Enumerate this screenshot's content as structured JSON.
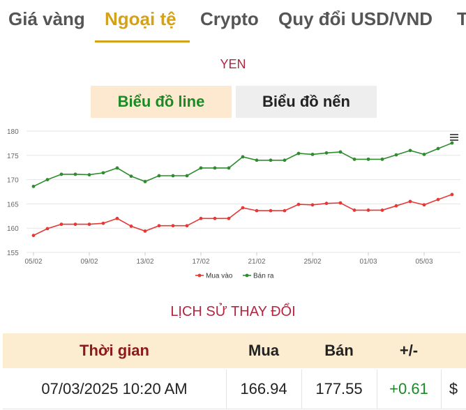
{
  "tabs": [
    "Giá vàng",
    "Ngoại tệ",
    "Crypto",
    "Quy đổi USD/VND",
    "T"
  ],
  "currency": "YEN",
  "toggle": {
    "line": "Biểu đồ line",
    "candle": "Biểu đồ nến"
  },
  "chart_data": {
    "type": "line",
    "title": "",
    "xlabel": "",
    "ylabel": "",
    "ylim": [
      155,
      180
    ],
    "yticks": [
      155,
      160,
      165,
      170,
      175,
      180
    ],
    "x_tick_labels": [
      "05/02",
      "09/02",
      "13/02",
      "17/02",
      "21/02",
      "25/02",
      "01/03",
      "05/03"
    ],
    "series": [
      {
        "name": "Mua vào",
        "color": "#e53935",
        "values": [
          158.5,
          159.9,
          160.8,
          160.8,
          160.8,
          161.0,
          162.0,
          160.4,
          159.4,
          160.5,
          160.5,
          160.5,
          162.0,
          162.0,
          162.0,
          164.2,
          163.6,
          163.6,
          163.6,
          164.9,
          164.8,
          165.1,
          165.2,
          163.7,
          163.7,
          163.7,
          164.6,
          165.5,
          164.8,
          165.9,
          166.94
        ]
      },
      {
        "name": "Bán ra",
        "color": "#2e8b2e",
        "values": [
          168.6,
          170.0,
          171.1,
          171.1,
          171.0,
          171.4,
          172.4,
          170.7,
          169.6,
          170.8,
          170.8,
          170.8,
          172.4,
          172.4,
          172.4,
          174.7,
          174.0,
          174.0,
          174.0,
          175.4,
          175.2,
          175.5,
          175.7,
          174.2,
          174.2,
          174.2,
          175.1,
          176.0,
          175.2,
          176.4,
          177.55
        ]
      }
    ],
    "legend": "bottom-center",
    "grid": true
  },
  "history": {
    "title": "LỊCH SỬ THAY ĐỔI",
    "headers": {
      "time": "Thời gian",
      "buy": "Mua",
      "sell": "Bán",
      "change": "+/-"
    },
    "rows": [
      {
        "time": "07/03/2025 10:20 AM",
        "buy": "166.94",
        "sell": "177.55",
        "change": "+0.61",
        "currency": "$"
      }
    ]
  }
}
